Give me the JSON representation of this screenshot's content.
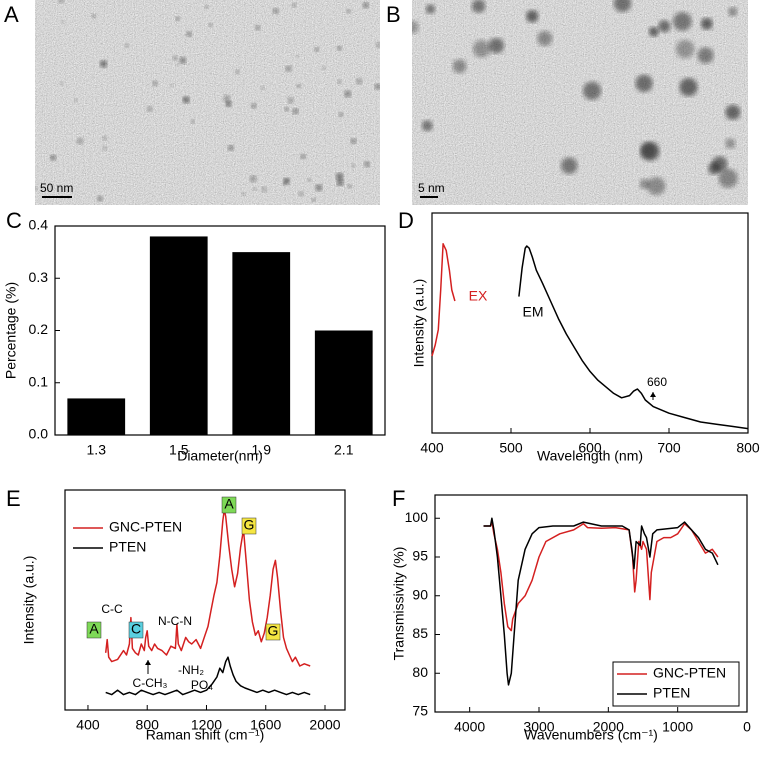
{
  "panel_labels": [
    "A",
    "B",
    "C",
    "D",
    "E",
    "F"
  ],
  "images": [
    {
      "scale_bar": "50 nm"
    },
    {
      "scale_bar": "5 nm"
    }
  ],
  "chart_data": [
    {
      "type": "bar",
      "x_label": "Diameter(nm)",
      "y_label": "Percentage (%)",
      "categories": [
        "1.3",
        "1.5",
        "1.9",
        "2.1"
      ],
      "values": [
        0.07,
        0.38,
        0.35,
        0.2
      ],
      "color": "#000000",
      "ylim": [
        0,
        0.4
      ],
      "yticks": [
        {
          "value": 0,
          "label": "0.0"
        },
        0.1,
        0.2,
        0.3,
        0.4
      ]
    },
    {
      "type": "line",
      "x_label": "Wavelength (nm)",
      "y_label": "Intensity (a.u.)",
      "xlim": [
        400,
        800
      ],
      "xticks": [
        400,
        500,
        600,
        700,
        800
      ],
      "ylim": [
        0,
        100
      ],
      "annotations": [
        "660"
      ],
      "series": [
        {
          "name": "EX",
          "color": "#d42020",
          "x": [
            400,
            404,
            408,
            411,
            414,
            418,
            422,
            425,
            429
          ],
          "values": [
            35,
            40,
            47,
            65,
            86,
            83,
            74,
            65,
            60
          ]
        },
        {
          "name": "EM",
          "color": "#000000",
          "x": [
            510,
            514,
            518,
            520,
            523,
            527,
            532,
            540,
            550,
            560,
            570,
            580,
            590,
            600,
            610,
            620,
            630,
            640,
            650,
            655,
            660,
            665,
            670,
            680,
            700,
            720,
            740,
            760,
            780,
            800
          ],
          "values": [
            62,
            75,
            84,
            85,
            84,
            80,
            74,
            68,
            60,
            52,
            45,
            39,
            33,
            28,
            24,
            21,
            18,
            16,
            17,
            19,
            20,
            18,
            15,
            12,
            9,
            7,
            5,
            4,
            3,
            2
          ]
        }
      ]
    },
    {
      "type": "line",
      "x_label": "Raman shift (cm⁻¹)",
      "y_label": "Intensity (a.u.)",
      "xlim": [
        245,
        2135
      ],
      "xticks": [
        400,
        800,
        1200,
        1600,
        2000
      ],
      "ylim": [
        0,
        100
      ],
      "legend": "upper left",
      "annotations": [
        "A",
        "C-C",
        "C",
        "N-C-N",
        "-NH₂",
        "C-CH₃",
        "PO₄",
        "A",
        "G",
        "G"
      ],
      "series": [
        {
          "name": "GNC-PTEN",
          "color": "#d42020",
          "x": [
            520,
            530,
            540,
            560,
            600,
            640,
            660,
            680,
            690,
            700,
            720,
            740,
            760,
            780,
            790,
            800,
            810,
            830,
            850,
            870,
            900,
            930,
            960,
            990,
            1000,
            1010,
            1030,
            1060,
            1080,
            1100,
            1130,
            1160,
            1190,
            1210,
            1230,
            1250,
            1270,
            1290,
            1310,
            1320,
            1330,
            1350,
            1370,
            1390,
            1410,
            1430,
            1450,
            1470,
            1490,
            1510,
            1530,
            1550,
            1570,
            1590,
            1610,
            1630,
            1650,
            1665,
            1680,
            1700,
            1720,
            1740,
            1760,
            1780,
            1800,
            1830,
            1860,
            1900
          ],
          "values": [
            26,
            32,
            24,
            22,
            23,
            27,
            25,
            30,
            42,
            28,
            26,
            25,
            30,
            27,
            33,
            36,
            29,
            27,
            30,
            28,
            27,
            25,
            29,
            28,
            39,
            30,
            27,
            33,
            31,
            30,
            32,
            28,
            34,
            38,
            45,
            52,
            58,
            70,
            86,
            91,
            88,
            75,
            64,
            56,
            62,
            74,
            82,
            66,
            50,
            40,
            34,
            36,
            31,
            35,
            42,
            52,
            64,
            68,
            60,
            45,
            33,
            28,
            25,
            22,
            24,
            20,
            21,
            20
          ]
        },
        {
          "name": "PTEN",
          "color": "#000000",
          "x": [
            520,
            560,
            600,
            640,
            680,
            720,
            760,
            800,
            840,
            880,
            920,
            960,
            1000,
            1040,
            1080,
            1120,
            1160,
            1200,
            1240,
            1270,
            1290,
            1310,
            1330,
            1345,
            1360,
            1380,
            1400,
            1430,
            1460,
            1500,
            1540,
            1580,
            1620,
            1660,
            1700,
            1740,
            1780,
            1820,
            1860,
            1900
          ],
          "values": [
            8,
            7,
            9,
            7,
            8,
            7,
            9,
            8,
            7,
            8,
            7,
            8,
            9,
            7,
            8,
            9,
            8,
            9,
            12,
            15,
            19,
            17,
            22,
            24,
            20,
            16,
            13,
            11,
            10,
            9,
            8,
            9,
            8,
            9,
            8,
            7,
            8,
            7,
            8,
            7
          ]
        }
      ]
    },
    {
      "type": "line",
      "x_label": "Wavenumbers (cm⁻¹)",
      "y_label": "Transmissivity (%)",
      "xlim": [
        4500,
        0
      ],
      "xticks": [
        4000,
        3000,
        2000,
        1000,
        0
      ],
      "ylim": [
        75,
        103
      ],
      "yticks": [
        75,
        80,
        85,
        90,
        95,
        100
      ],
      "legend": "lower right",
      "series": [
        {
          "name": "GNC-PTEN",
          "color": "#d42020",
          "x": [
            3800,
            3700,
            3680,
            3650,
            3600,
            3550,
            3500,
            3450,
            3400,
            3380,
            3300,
            3200,
            3100,
            3000,
            2900,
            2700,
            2500,
            2360,
            2300,
            2100,
            1900,
            1700,
            1650,
            1620,
            1600,
            1560,
            1520,
            1500,
            1450,
            1400,
            1380,
            1300,
            1200,
            1100,
            1000,
            900,
            800,
            700,
            600,
            500,
            420
          ],
          "values": [
            99,
            99,
            99.5,
            98,
            96,
            93,
            89,
            86,
            85.5,
            87,
            89,
            90,
            92,
            95,
            97,
            98,
            98.5,
            99.3,
            98.8,
            98.7,
            98.8,
            98.5,
            95,
            90.5,
            92,
            97,
            96,
            97,
            96,
            89.5,
            93,
            97,
            97.5,
            97.5,
            98,
            99.3,
            98.5,
            97,
            95.5,
            96,
            95
          ]
        },
        {
          "name": "PTEN",
          "color": "#000000",
          "x": [
            3800,
            3700,
            3680,
            3650,
            3600,
            3550,
            3500,
            3460,
            3440,
            3400,
            3350,
            3300,
            3200,
            3100,
            3000,
            2800,
            2500,
            2360,
            2100,
            1800,
            1700,
            1660,
            1630,
            1600,
            1540,
            1520,
            1480,
            1450,
            1400,
            1360,
            1300,
            1200,
            1000,
            900,
            800,
            700,
            600,
            500,
            420
          ],
          "values": [
            99,
            99,
            100,
            98.5,
            95,
            90,
            85,
            80,
            78.5,
            80,
            86,
            92,
            96,
            98,
            98.8,
            99,
            99,
            99.5,
            99,
            99,
            98.5,
            96,
            93.5,
            97,
            96.5,
            99,
            98,
            97.5,
            95,
            98,
            98.5,
            98.6,
            98.8,
            99.5,
            98.5,
            97.5,
            96,
            95.5,
            94
          ]
        }
      ]
    }
  ]
}
